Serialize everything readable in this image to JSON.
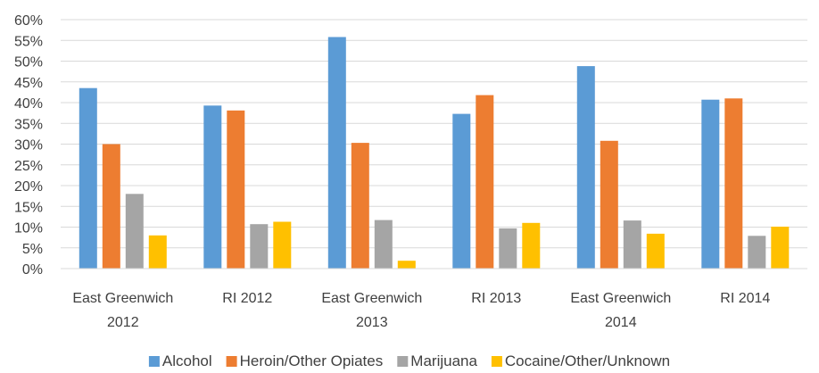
{
  "chart_data": {
    "type": "bar",
    "categories": [
      [
        "East Greenwich",
        "2012"
      ],
      [
        "RI 2012"
      ],
      [
        "East Greenwich",
        "2013"
      ],
      [
        "RI 2013"
      ],
      [
        "East Greenwich",
        "2014"
      ],
      [
        "RI 2014"
      ]
    ],
    "series": [
      {
        "name": "Alcohol",
        "color": "#5B9BD5",
        "values": [
          43.5,
          39.3,
          55.8,
          37.3,
          48.8,
          40.7
        ]
      },
      {
        "name": "Heroin/Other Opiates",
        "color": "#ED7D31",
        "values": [
          30.0,
          38.1,
          30.3,
          41.8,
          30.8,
          41.0
        ]
      },
      {
        "name": "Marijuana",
        "color": "#A5A5A5",
        "values": [
          18.0,
          10.7,
          11.7,
          9.7,
          11.6,
          7.9
        ]
      },
      {
        "name": "Cocaine/Other/Unknown",
        "color": "#FFC000",
        "values": [
          8.0,
          11.3,
          1.9,
          11.0,
          8.4,
          10.1
        ]
      }
    ],
    "ylim": [
      0,
      60
    ],
    "yticks": [
      0,
      5,
      10,
      15,
      20,
      25,
      30,
      35,
      40,
      45,
      50,
      55,
      60
    ],
    "ytick_format": "percent",
    "grid": true,
    "legend": "bottom",
    "title": "",
    "xlabel": "",
    "ylabel": ""
  }
}
